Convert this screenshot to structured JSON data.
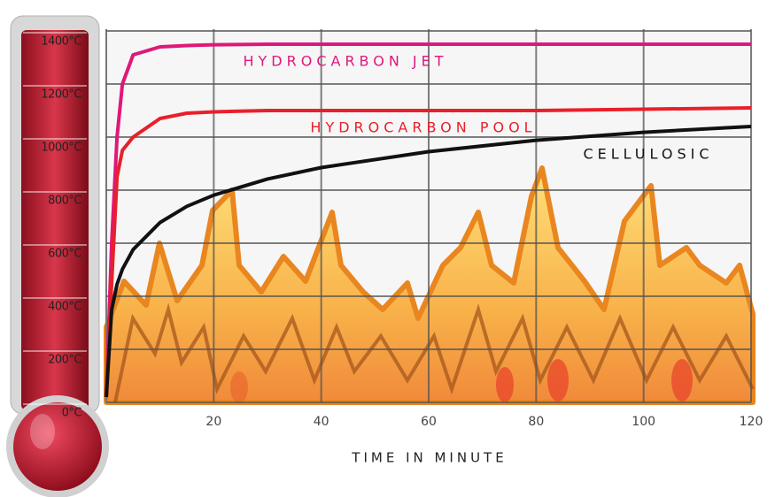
{
  "chart_data": {
    "type": "line",
    "x_label": "TIME IN MINUTE",
    "x": [
      0,
      1,
      2,
      3,
      5,
      10,
      15,
      20,
      30,
      40,
      60,
      80,
      100,
      120
    ],
    "series": [
      {
        "name": "HYDROCARBON JET",
        "color": "#e0177a",
        "values": [
          20,
          600,
          1000,
          1200,
          1310,
          1340,
          1345,
          1348,
          1350,
          1350,
          1350,
          1350,
          1350,
          1350
        ]
      },
      {
        "name": "HYDROCARBON POOL",
        "color": "#e8202a",
        "values": [
          20,
          450,
          850,
          950,
          1000,
          1070,
          1090,
          1095,
          1100,
          1100,
          1100,
          1100,
          1105,
          1110
        ]
      },
      {
        "name": "CELLULOSIC",
        "color": "#111111",
        "values": [
          20,
          349,
          445,
          502,
          576,
          678,
          739,
          781,
          842,
          885,
          945,
          988,
          1018,
          1040
        ]
      }
    ],
    "xlim": [
      0,
      120
    ],
    "xticks": [
      20,
      40,
      60,
      80,
      100,
      120
    ],
    "ylim": [
      0,
      1400
    ],
    "yticks": [
      {
        "value": 0,
        "label": "0°C"
      },
      {
        "value": 200,
        "label": "200°C"
      },
      {
        "value": 400,
        "label": "400°C"
      },
      {
        "value": 600,
        "label": "600°C"
      },
      {
        "value": 800,
        "label": "800°C"
      },
      {
        "value": 1000,
        "label": "1000°C"
      },
      {
        "value": 1200,
        "label": "1200°C"
      },
      {
        "value": 1400,
        "label": "1400°C"
      }
    ],
    "grid": true
  }
}
